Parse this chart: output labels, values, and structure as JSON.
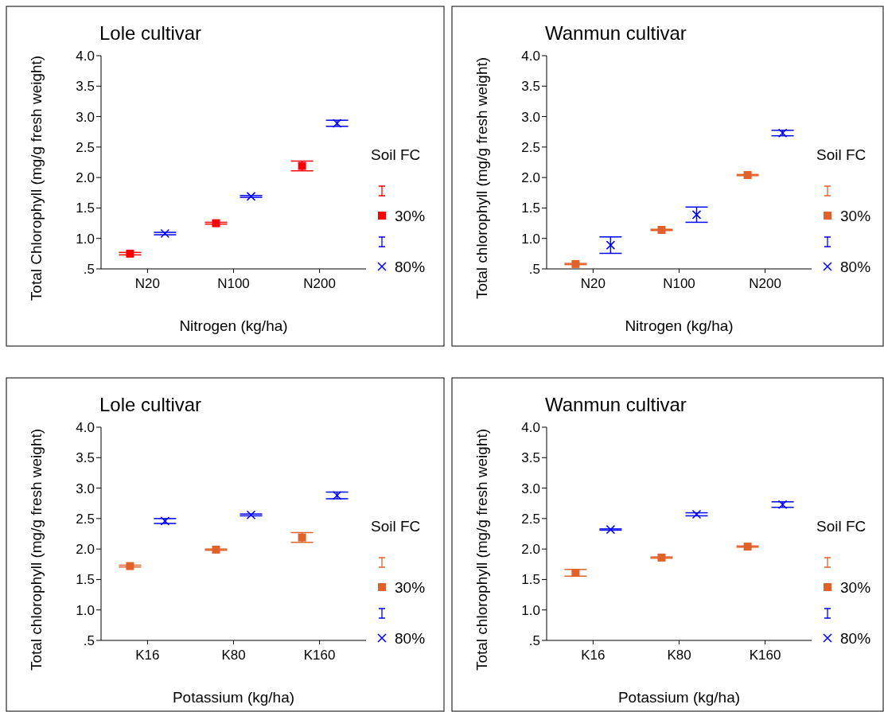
{
  "chart_data": [
    {
      "type": "scatter",
      "title": "Lole cultivar",
      "xlabel": "Nitrogen (kg/ha)",
      "ylabel": "Total Chlorophyll (mg/g fresh weight)",
      "legend_title": "Soil FC",
      "categories": [
        "N20",
        "N100",
        "N200"
      ],
      "ylim": [
        0.5,
        4.0
      ],
      "yticks": [
        {
          "value": 0.5,
          "label": ".5"
        },
        {
          "value": 1,
          "label": "1.0"
        },
        1.5,
        {
          "value": 2,
          "label": "2.0"
        },
        2.5,
        {
          "value": 3,
          "label": "3.0"
        },
        3.5,
        {
          "value": 4,
          "label": "4.0"
        }
      ],
      "legend": "right",
      "series": [
        {
          "name": "30%",
          "color": "#ff0000",
          "marker": "square",
          "values": [
            0.75,
            1.25,
            2.19
          ],
          "errors": [
            0.02,
            0.015,
            0.08
          ]
        },
        {
          "name": "80%",
          "color": "#0000ff",
          "marker": "cross",
          "values": [
            1.08,
            1.69,
            2.89
          ],
          "errors": [
            0.02,
            0.015,
            0.05
          ]
        }
      ]
    },
    {
      "type": "scatter",
      "title": "Wanmun cultivar",
      "xlabel": "Nitrogen (kg/ha)",
      "ylabel": "Total chlorophyll (mg/g fresh weight)",
      "legend_title": "Soil FC",
      "categories": [
        "N20",
        "N100",
        "N200"
      ],
      "ylim": [
        0.5,
        4.0
      ],
      "yticks": [
        {
          "value": 0.5,
          "label": ".5"
        },
        {
          "value": 1,
          "label": "1.0"
        },
        1.5,
        {
          "value": 2,
          "label": "2.0"
        },
        2.5,
        {
          "value": 3,
          "label": "3.0"
        },
        3.5,
        {
          "value": 4,
          "label": "4.0"
        }
      ],
      "legend": "right",
      "series": [
        {
          "name": "30%",
          "color": "#e0622a",
          "marker": "square",
          "values": [
            0.58,
            1.14,
            2.04
          ],
          "errors": [
            0.01,
            0.01,
            0.01
          ]
        },
        {
          "name": "80%",
          "color": "#0000ff",
          "marker": "cross",
          "values": [
            0.89,
            1.39,
            2.73
          ],
          "errors": [
            0.135,
            0.125,
            0.045
          ]
        }
      ]
    },
    {
      "type": "scatter",
      "title": "Lole cultivar",
      "xlabel": "Potassium (kg/ha)",
      "ylabel": "Total chlorophyll (mg/g fresh weight)",
      "legend_title": "Soil FC",
      "categories": [
        "K16",
        "K80",
        "K160"
      ],
      "ylim": [
        0.5,
        4.0
      ],
      "yticks": [
        {
          "value": 0.5,
          "label": ".5"
        },
        {
          "value": 1,
          "label": "1.0"
        },
        1.5,
        {
          "value": 2,
          "label": "2.0"
        },
        2.5,
        {
          "value": 3,
          "label": "3.0"
        },
        3.5,
        {
          "value": 4,
          "label": "4.0"
        }
      ],
      "legend": "right",
      "series": [
        {
          "name": "30%",
          "color": "#e0622a",
          "marker": "square",
          "values": [
            1.72,
            1.99,
            2.19
          ],
          "errors": [
            0.015,
            0.01,
            0.08
          ]
        },
        {
          "name": "80%",
          "color": "#0000ff",
          "marker": "cross",
          "values": [
            2.46,
            2.56,
            2.88
          ],
          "errors": [
            0.04,
            0.015,
            0.055
          ]
        }
      ]
    },
    {
      "type": "scatter",
      "title": "Wanmun cultivar",
      "xlabel": "Potassium (kg/ha)",
      "ylabel": "Total chlorophyll (mg/g fresh weight)",
      "legend_title": "Soil FC",
      "categories": [
        "K16",
        "K80",
        "K160"
      ],
      "ylim": [
        0.5,
        4.0
      ],
      "yticks": [
        {
          "value": 0.5,
          "label": ".5"
        },
        {
          "value": 1,
          "label": "1.0"
        },
        1.5,
        {
          "value": 2,
          "label": "2.0"
        },
        2.5,
        {
          "value": 3,
          "label": "3.0"
        },
        3.5,
        {
          "value": 4,
          "label": "4.0"
        }
      ],
      "legend": "right",
      "series": [
        {
          "name": "30%",
          "color": "#e0622a",
          "marker": "square",
          "values": [
            1.61,
            1.86,
            2.04
          ],
          "errors": [
            0.055,
            0.01,
            0.01
          ]
        },
        {
          "name": "80%",
          "color": "#0000ff",
          "marker": "cross",
          "values": [
            2.32,
            2.57,
            2.73
          ],
          "errors": [
            0.01,
            0.025,
            0.045
          ]
        }
      ]
    }
  ]
}
